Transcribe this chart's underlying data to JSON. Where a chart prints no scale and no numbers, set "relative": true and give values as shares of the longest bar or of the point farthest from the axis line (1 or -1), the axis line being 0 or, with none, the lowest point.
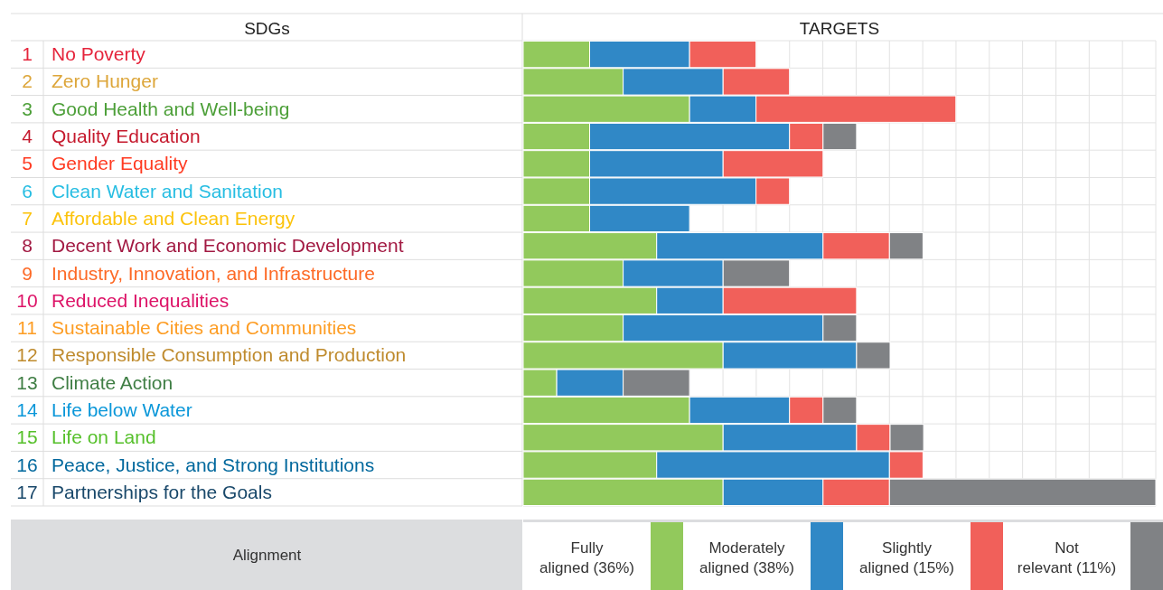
{
  "chart_data": {
    "type": "bar",
    "orientation": "horizontal",
    "stacked": true,
    "relative": true,
    "xlabel": "TARGETS",
    "ylabel": "SDGs",
    "legend": "bottom",
    "legend_title": "Alignment",
    "categories": [
      "1 No Poverty",
      "2 Zero Hunger",
      "3 Good Health and Well-being",
      "4 Quality Education",
      "5 Gender Equality",
      "6 Clean Water and Sanitation",
      "7 Affordable and Clean Energy",
      "8 Decent Work and Economic Development",
      "9 Industry, Innovation, and Infrastructure",
      "10 Reduced Inequalities",
      "11 Sustainable Cities and Communities",
      "12 Responsible Consumption and Production",
      "13 Climate Action",
      "14 Life below Water",
      "15 Life on Land",
      "16 Peace, Justice, and Strong Institutions",
      "17 Partnerships for the Goals"
    ],
    "series": [
      {
        "name": "Fully aligned (36%)",
        "color": "#92c95c",
        "values": [
          0.105,
          0.158,
          0.263,
          0.105,
          0.105,
          0.105,
          0.105,
          0.211,
          0.158,
          0.211,
          0.158,
          0.316,
          0.053,
          0.263,
          0.316,
          0.211,
          0.316
        ]
      },
      {
        "name": "Moderately aligned (38%)",
        "color": "#3088c6",
        "values": [
          0.158,
          0.158,
          0.105,
          0.316,
          0.211,
          0.263,
          0.158,
          0.263,
          0.158,
          0.105,
          0.316,
          0.211,
          0.105,
          0.158,
          0.211,
          0.368,
          0.158
        ]
      },
      {
        "name": "Slightly aligned (15%)",
        "color": "#f1605a",
        "values": [
          0.105,
          0.105,
          0.316,
          0.053,
          0.158,
          0.053,
          0,
          0.105,
          0,
          0.211,
          0,
          0,
          0,
          0.053,
          0.053,
          0.053,
          0.105
        ]
      },
      {
        "name": "Not relevant (11%)",
        "color": "#808285",
        "values": [
          0,
          0,
          0,
          0.053,
          0,
          0,
          0,
          0.053,
          0.105,
          0,
          0.053,
          0.053,
          0.105,
          0.053,
          0.053,
          0,
          0.421
        ]
      }
    ]
  }
}
